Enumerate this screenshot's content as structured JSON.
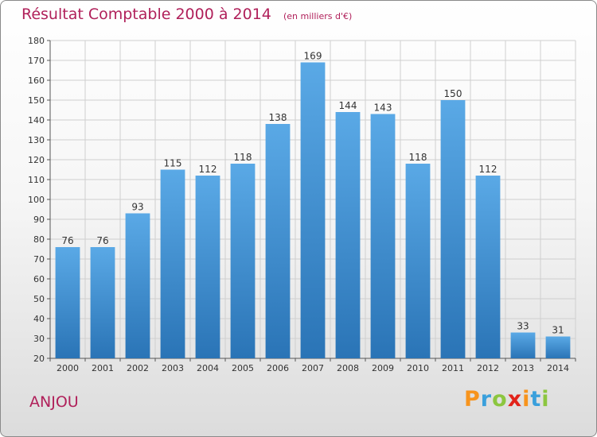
{
  "header": {
    "title": "Résultat Comptable 2000 à 2014",
    "subtitle": "(en milliers d'€)"
  },
  "footer": {
    "commune": "ANJOU",
    "brand": [
      "P",
      "r",
      "o",
      "x",
      "i",
      "t",
      "i"
    ]
  },
  "colors": {
    "title": "#b0205a",
    "bar_top": "#5aa9e6",
    "bar_bottom": "#2a74b6",
    "grid": "#cfcfcf",
    "brand": [
      "#f7941d",
      "#3aa0dc",
      "#8cc63f",
      "#e2231a",
      "#f7941d",
      "#3aa0dc",
      "#8cc63f"
    ]
  },
  "chart_data": {
    "type": "bar",
    "title": "Résultat Comptable 2000 à 2014",
    "subtitle": "(en milliers d'€)",
    "xlabel": "",
    "ylabel": "",
    "categories": [
      "2000",
      "2001",
      "2002",
      "2003",
      "2004",
      "2005",
      "2006",
      "2007",
      "2008",
      "2009",
      "2010",
      "2011",
      "2012",
      "2013",
      "2014"
    ],
    "values": [
      76,
      76,
      93,
      115,
      112,
      118,
      138,
      169,
      144,
      143,
      118,
      150,
      112,
      33,
      31
    ],
    "ylim": [
      20,
      180
    ],
    "yticks": [
      20,
      30,
      40,
      50,
      60,
      70,
      80,
      90,
      100,
      110,
      120,
      130,
      140,
      150,
      160,
      170,
      180
    ],
    "grid": true,
    "legend": "none"
  }
}
